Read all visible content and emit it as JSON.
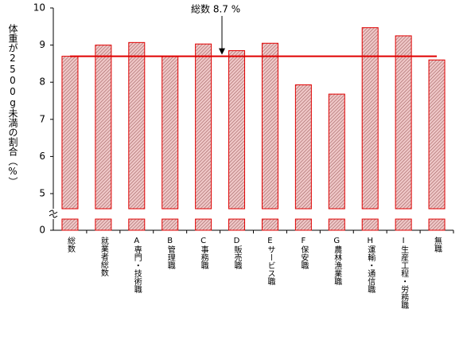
{
  "chart_data": {
    "type": "bar",
    "y_label": "体重が2500g未満の割合（%）",
    "categories": [
      "総数",
      "就業者総数",
      "A専門・技術職",
      "B管理職",
      "C事務職",
      "D販売職",
      "Eサービス職",
      "F保安職",
      "G農林漁業職",
      "H運輸・通信職",
      "I生産工程・労務職",
      "無職"
    ],
    "values": [
      8.7,
      9.0,
      9.07,
      8.7,
      9.03,
      8.85,
      9.05,
      7.93,
      7.68,
      9.47,
      9.25,
      8.6
    ],
    "color": "#e00000",
    "ylim": [
      5,
      10
    ],
    "yticks": [
      5,
      6,
      7,
      8,
      9,
      10
    ],
    "lower_ticks": [
      0
    ],
    "reference": {
      "value": 8.7,
      "label": "総数 8.7 %",
      "color": "#e00000"
    }
  }
}
